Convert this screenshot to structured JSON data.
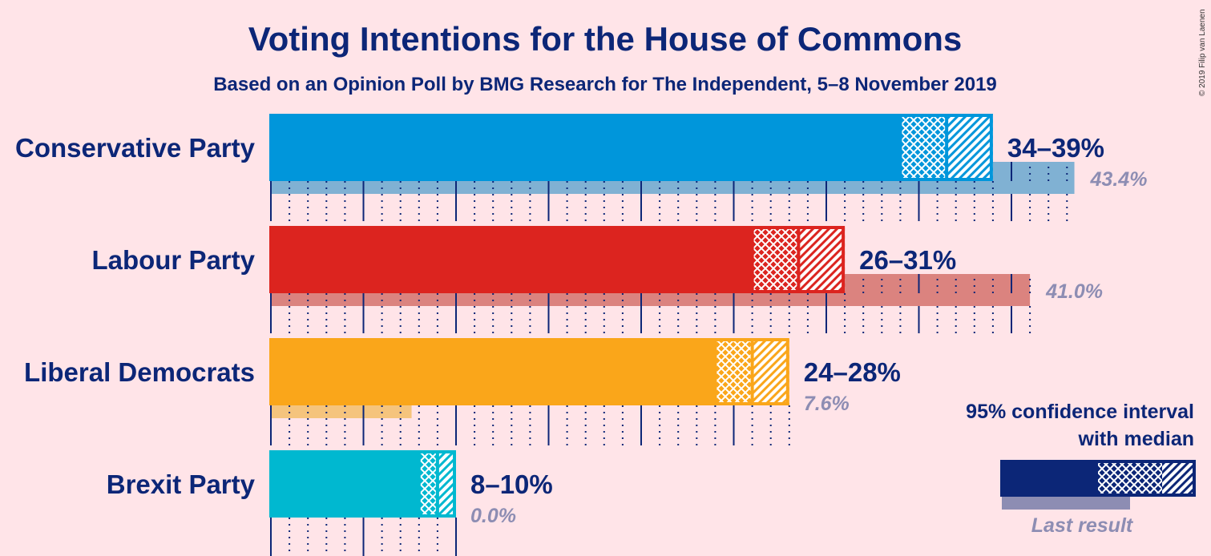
{
  "title": "Voting Intentions for the House of Commons",
  "subtitle": "Based on an Opinion Poll by BMG Research for The Independent, 5–8 November 2019",
  "copyright": "© 2019 Filip van Laenen",
  "legend": {
    "line1": "95% confidence interval",
    "line2": "with median",
    "last_result": "Last result"
  },
  "colors": {
    "background": "#FFE4E8",
    "text": "#0C2677",
    "muted": "#8D8DB3",
    "gridline": "#0C2677"
  },
  "chart_data": {
    "type": "bar",
    "orientation": "horizontal",
    "unit": "%",
    "series": [
      {
        "party": "Conservative Party",
        "ci_low": 34,
        "median": 36.5,
        "ci_high": 39,
        "range_label": "34–39%",
        "last_result": 43.4,
        "last_label": "43.4%",
        "color": "#0096DB",
        "last_color": "#80B1D3"
      },
      {
        "party": "Labour Party",
        "ci_low": 26,
        "median": 28.5,
        "ci_high": 31,
        "range_label": "26–31%",
        "last_result": 41.0,
        "last_label": "41.0%",
        "color": "#DC241F",
        "last_color": "#DB837F"
      },
      {
        "party": "Liberal Democrats",
        "ci_low": 24,
        "median": 26,
        "ci_high": 28,
        "range_label": "24–28%",
        "last_result": 7.6,
        "last_label": "7.6%",
        "color": "#FAA61A",
        "last_color": "#F5C47D"
      },
      {
        "party": "Brexit Party",
        "ci_low": 8,
        "median": 9,
        "ci_high": 10,
        "range_label": "8–10%",
        "last_result": 0.0,
        "last_label": "0.0%",
        "color": "#00B8D0",
        "last_color": "#7FD3DE"
      }
    ]
  }
}
